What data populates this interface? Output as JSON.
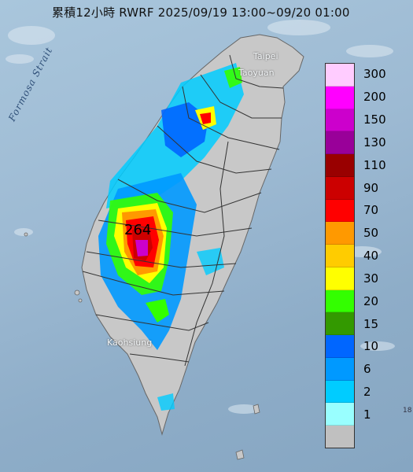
{
  "title": "累積12小時 RWRF 2025/09/19 13:00~09/20 01:00",
  "places": {
    "taipei": "Taipei",
    "taoyuan": "Taoyuan",
    "kaohsiung": "Kaohsiung",
    "strait": "Formosa Strait"
  },
  "max_value": "264",
  "edge_label": "18",
  "legend": [
    {
      "label": "300",
      "color": "#ffccff"
    },
    {
      "label": "200",
      "color": "#ff00ff"
    },
    {
      "label": "150",
      "color": "#cc00cc"
    },
    {
      "label": "130",
      "color": "#990099"
    },
    {
      "label": "110",
      "color": "#990000"
    },
    {
      "label": "90",
      "color": "#cc0000"
    },
    {
      "label": "70",
      "color": "#ff0000"
    },
    {
      "label": "50",
      "color": "#ff9900"
    },
    {
      "label": "40",
      "color": "#ffcc00"
    },
    {
      "label": "30",
      "color": "#ffff00"
    },
    {
      "label": "20",
      "color": "#33ff00"
    },
    {
      "label": "15",
      "color": "#339900"
    },
    {
      "label": "10",
      "color": "#0066ff"
    },
    {
      "label": "6",
      "color": "#0099ff"
    },
    {
      "label": "2",
      "color": "#00ccff"
    },
    {
      "label": "1",
      "color": "#99ffff"
    },
    {
      "label": "",
      "color": "#c0c0c0"
    }
  ]
}
